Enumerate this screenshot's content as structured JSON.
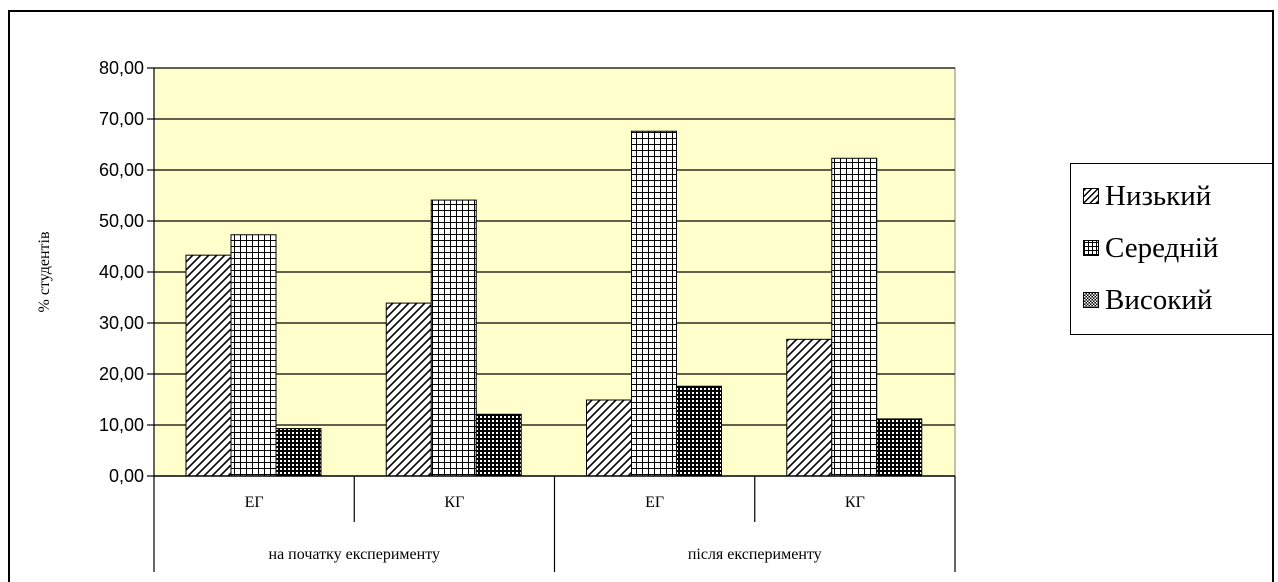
{
  "chart_data": {
    "type": "bar",
    "title": "",
    "ylabel": "% студентів",
    "ylim": [
      0,
      80
    ],
    "yticks": [
      "0,00",
      "10,00",
      "20,00",
      "30,00",
      "40,00",
      "50,00",
      "60,00",
      "70,00",
      "80,00"
    ],
    "groups": [
      {
        "label": "на початку експерименту",
        "categories": [
          "ЕГ",
          "КГ"
        ]
      },
      {
        "label": "після експерименту",
        "categories": [
          "ЕГ",
          "КГ"
        ]
      }
    ],
    "categories": [
      "ЕГ",
      "КГ",
      "ЕГ",
      "КГ"
    ],
    "series": [
      {
        "name": "Низький",
        "values": [
          43.3,
          33.9,
          14.9,
          26.8
        ]
      },
      {
        "name": "Середній",
        "values": [
          47.3,
          54.1,
          67.6,
          62.3
        ]
      },
      {
        "name": "Високий",
        "values": [
          9.3,
          12.1,
          17.6,
          11.2
        ]
      }
    ],
    "grid": true,
    "legend_position": "right",
    "colors": {
      "plot_background": "#ffffcc",
      "bar_fill": "#ffffff",
      "stroke": "#000000"
    }
  }
}
